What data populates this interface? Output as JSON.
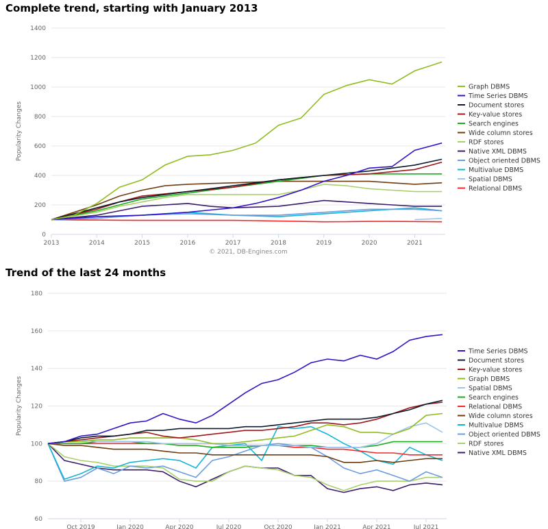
{
  "titles": [
    "Complete trend, starting with January 2013",
    "Trend of the last 24 months"
  ],
  "colors": {
    "Graph DBMS": "#8fbc1e",
    "Time Series DBMS": "#2f12c6",
    "Document stores": "#0d1a2e",
    "Key-value stores": "#a01616",
    "Search engines": "#1bab1b",
    "Wide column stores": "#6e3b10",
    "RDF stores": "#a6d16a",
    "Native XML DBMS": "#3b1a6a",
    "Object oriented DBMS": "#6a9be0",
    "Multivalue DBMS": "#12b5d5",
    "Spatial DBMS": "#99c4f0",
    "Relational DBMS": "#f0282a"
  },
  "chart_data": [
    {
      "type": "line",
      "title": "Complete trend, starting with January 2013",
      "ylabel": "Popularity Changes",
      "credit": "© 2021, DB-Engines.com",
      "ylim": [
        0,
        1400
      ],
      "yticks": [
        0,
        200,
        400,
        600,
        800,
        1000,
        1200,
        1400
      ],
      "xlim": [
        2013,
        2021.65
      ],
      "xticks": [
        2013,
        2014,
        2015,
        2016,
        2017,
        2018,
        2019,
        2020,
        2021
      ],
      "grid": "horizontal",
      "legend": "right",
      "x": [
        2013,
        2013.5,
        2014,
        2014.5,
        2015,
        2015.5,
        2016,
        2016.5,
        2017,
        2017.5,
        2018,
        2018.5,
        2019,
        2019.5,
        2020,
        2020.5,
        2021,
        2021.6
      ],
      "series": [
        {
          "name": "Graph DBMS",
          "values": [
            100,
            130,
            210,
            320,
            370,
            470,
            530,
            540,
            570,
            620,
            740,
            790,
            950,
            1010,
            1050,
            1020,
            1110,
            1170
          ]
        },
        {
          "name": "Time Series DBMS",
          "values": [
            100,
            110,
            120,
            125,
            130,
            140,
            150,
            165,
            180,
            210,
            250,
            300,
            360,
            400,
            450,
            460,
            570,
            620
          ]
        },
        {
          "name": "Document stores",
          "values": [
            100,
            140,
            180,
            220,
            250,
            270,
            290,
            310,
            330,
            350,
            370,
            385,
            400,
            415,
            430,
            450,
            470,
            510
          ]
        },
        {
          "name": "Key-value stores",
          "values": [
            100,
            135,
            170,
            220,
            260,
            275,
            290,
            305,
            320,
            345,
            370,
            385,
            400,
            405,
            410,
            425,
            440,
            490
          ]
        },
        {
          "name": "Search engines",
          "values": [
            100,
            130,
            160,
            200,
            240,
            260,
            280,
            300,
            320,
            340,
            360,
            380,
            400,
            405,
            410,
            410,
            410,
            410
          ]
        },
        {
          "name": "Wide column stores",
          "values": [
            100,
            150,
            200,
            260,
            300,
            330,
            340,
            345,
            350,
            355,
            360,
            360,
            360,
            360,
            360,
            350,
            340,
            350
          ]
        },
        {
          "name": "RDF stores",
          "values": [
            100,
            125,
            150,
            190,
            220,
            250,
            270,
            270,
            270,
            270,
            270,
            300,
            340,
            330,
            310,
            300,
            290,
            290
          ]
        },
        {
          "name": "Native XML DBMS",
          "values": [
            100,
            115,
            130,
            160,
            190,
            200,
            210,
            190,
            180,
            185,
            190,
            210,
            230,
            220,
            210,
            200,
            190,
            190
          ]
        },
        {
          "name": "Object oriented DBMS",
          "values": [
            100,
            105,
            110,
            120,
            130,
            135,
            140,
            135,
            130,
            130,
            130,
            140,
            150,
            160,
            170,
            170,
            170,
            160
          ]
        },
        {
          "name": "Multivalue DBMS",
          "values": [
            100,
            105,
            110,
            120,
            130,
            140,
            150,
            140,
            130,
            125,
            120,
            130,
            140,
            150,
            160,
            170,
            180,
            160
          ]
        },
        {
          "name": "Spatial DBMS",
          "values": [
            null,
            null,
            null,
            null,
            null,
            null,
            null,
            null,
            null,
            null,
            null,
            null,
            null,
            null,
            null,
            null,
            100,
            108
          ]
        },
        {
          "name": "Relational DBMS",
          "values": [
            100,
            98,
            97,
            96,
            95,
            95,
            95,
            95,
            95,
            93,
            90,
            88,
            85,
            86,
            88,
            88,
            87,
            85
          ]
        }
      ]
    },
    {
      "type": "line",
      "title": "Trend of the last 24 months",
      "ylabel": "Popularity Changes",
      "credit": "© 2021, DB-Engines.com",
      "ylim": [
        60,
        180
      ],
      "yticks": [
        60,
        80,
        100,
        120,
        140,
        160,
        180
      ],
      "xticks": [
        "Oct 2019",
        "Jan 2020",
        "Apr 2020",
        "Jul 2020",
        "Oct 2020",
        "Jan 2021",
        "Apr 2021",
        "Jul 2021"
      ],
      "grid": "horizontal",
      "legend": "right",
      "x": [
        "Aug 2019",
        "Sep 2019",
        "Oct 2019",
        "Nov 2019",
        "Dec 2019",
        "Jan 2020",
        "Feb 2020",
        "Mar 2020",
        "Apr 2020",
        "May 2020",
        "Jun 2020",
        "Jul 2020",
        "Aug 2020",
        "Sep 2020",
        "Oct 2020",
        "Nov 2020",
        "Dec 2020",
        "Jan 2021",
        "Feb 2021",
        "Mar 2021",
        "Apr 2021",
        "May 2021",
        "Jun 2021",
        "Jul 2021",
        "Aug 2021"
      ],
      "series": [
        {
          "name": "Time Series DBMS",
          "values": [
            100,
            101,
            104,
            105,
            108,
            111,
            112,
            116,
            113,
            111,
            115,
            121,
            127,
            132,
            134,
            138,
            143,
            145,
            144,
            147,
            145,
            149,
            155,
            157,
            158
          ]
        },
        {
          "name": "Document stores",
          "values": [
            100,
            101,
            103,
            104,
            104,
            105,
            107,
            107,
            108,
            108,
            108,
            108,
            109,
            109,
            110,
            111,
            112,
            113,
            113,
            113,
            114,
            116,
            118,
            121,
            123
          ]
        },
        {
          "name": "Key-value stores",
          "values": [
            100,
            101,
            102,
            103,
            104,
            105,
            106,
            104,
            103,
            104,
            105,
            106,
            107,
            107,
            108,
            109,
            111,
            111,
            110,
            111,
            113,
            116,
            119,
            121,
            122
          ]
        },
        {
          "name": "Graph DBMS",
          "values": [
            100,
            101,
            101,
            102,
            102,
            103,
            103,
            103,
            103,
            102,
            100,
            100,
            101,
            102,
            103,
            104,
            107,
            110,
            109,
            106,
            106,
            105,
            108,
            115,
            116
          ]
        },
        {
          "name": "Spatial DBMS",
          "values": [
            100,
            101,
            102,
            101,
            101,
            101,
            101,
            100,
            100,
            100,
            100,
            99,
            99,
            99,
            99,
            99,
            98,
            98,
            98,
            98,
            100,
            105,
            109,
            111,
            106
          ]
        },
        {
          "name": "Search engines",
          "values": [
            100,
            100,
            100,
            101,
            101,
            101,
            100,
            100,
            99,
            99,
            98,
            98,
            98,
            99,
            99,
            99,
            99,
            98,
            98,
            98,
            99,
            101,
            101,
            101,
            101
          ]
        },
        {
          "name": "Relational DBMS",
          "values": [
            100,
            100,
            100,
            100,
            100,
            100,
            100,
            100,
            100,
            100,
            100,
            99,
            99,
            99,
            99,
            98,
            98,
            97,
            97,
            96,
            95,
            95,
            94,
            94,
            94
          ]
        },
        {
          "name": "Wide column stores",
          "values": [
            100,
            99,
            99,
            98,
            97,
            97,
            97,
            96,
            95,
            95,
            94,
            94,
            94,
            94,
            94,
            94,
            94,
            93,
            90,
            90,
            91,
            90,
            91,
            92,
            92
          ]
        },
        {
          "name": "Multivalue DBMS",
          "values": [
            100,
            81,
            84,
            88,
            87,
            90,
            91,
            92,
            91,
            87,
            98,
            99,
            100,
            91,
            109,
            108,
            109,
            105,
            100,
            96,
            91,
            89,
            98,
            94,
            91
          ]
        },
        {
          "name": "Object oriented DBMS",
          "values": [
            100,
            80,
            82,
            87,
            84,
            88,
            87,
            88,
            85,
            82,
            91,
            93,
            96,
            99,
            100,
            99,
            98,
            93,
            87,
            84,
            86,
            83,
            80,
            85,
            82
          ]
        },
        {
          "name": "RDF stores",
          "values": [
            100,
            93,
            91,
            90,
            88,
            88,
            88,
            87,
            81,
            80,
            80,
            85,
            88,
            87,
            86,
            83,
            82,
            78,
            75,
            78,
            80,
            80,
            80,
            82,
            82
          ]
        },
        {
          "name": "Native XML DBMS",
          "values": [
            100,
            91,
            89,
            87,
            86,
            86,
            86,
            85,
            80,
            77,
            81,
            85,
            88,
            87,
            87,
            83,
            83,
            76,
            74,
            76,
            77,
            75,
            78,
            79,
            78
          ]
        }
      ]
    }
  ]
}
